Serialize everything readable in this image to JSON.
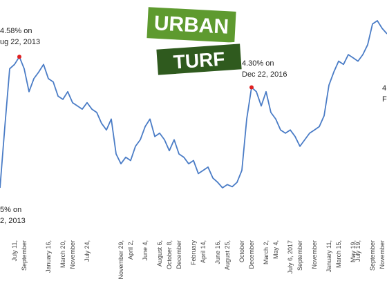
{
  "chart_data": {
    "type": "line",
    "categories": [
      null,
      null,
      null,
      "July 11,",
      null,
      "September",
      null,
      null,
      null,
      null,
      "January 16,",
      null,
      null,
      "March 20,",
      null,
      "November",
      null,
      null,
      "July 24,",
      null,
      null,
      null,
      null,
      null,
      null,
      "November 29,",
      null,
      "April 2,",
      null,
      null,
      "June 4,",
      null,
      null,
      "August 6,",
      null,
      "October 8,",
      null,
      "December",
      null,
      null,
      "February",
      null,
      "April 14,",
      null,
      null,
      "June 16,",
      null,
      "August 25,",
      null,
      null,
      "October",
      null,
      "December",
      null,
      null,
      "March 2,",
      null,
      "May 4,",
      null,
      null,
      "July 6, 2017",
      null,
      "September",
      null,
      null,
      "November",
      null,
      null,
      "January 11,",
      null,
      "March 15,",
      null,
      null,
      "May 19,",
      "July 19,",
      null,
      null,
      "September",
      null,
      "November",
      null
    ],
    "series": [
      {
        "color": "#4a7cc6",
        "values": [
          3.38,
          3.94,
          4.47,
          4.51,
          4.58,
          4.47,
          4.26,
          4.38,
          4.44,
          4.51,
          4.38,
          4.35,
          4.22,
          4.19,
          4.26,
          4.16,
          4.13,
          4.1,
          4.16,
          4.1,
          4.07,
          3.97,
          3.91,
          4.01,
          3.69,
          3.6,
          3.66,
          3.63,
          3.76,
          3.82,
          3.94,
          4.01,
          3.85,
          3.88,
          3.82,
          3.72,
          3.82,
          3.69,
          3.66,
          3.6,
          3.63,
          3.51,
          3.54,
          3.57,
          3.47,
          3.43,
          3.38,
          3.41,
          3.39,
          3.43,
          3.54,
          4.01,
          4.3,
          4.26,
          4.13,
          4.26,
          4.07,
          4.01,
          3.91,
          3.88,
          3.91,
          3.85,
          3.76,
          3.82,
          3.88,
          3.91,
          3.94,
          4.04,
          4.32,
          4.44,
          4.54,
          4.51,
          4.6,
          4.57,
          4.54,
          4.6,
          4.69,
          4.88,
          4.91,
          4.84,
          4.79
        ]
      }
    ],
    "ylim": [
      2.95,
      5.1
    ],
    "annotations": [
      {
        "lines": [
          "4.58% on",
          "ug 22, 2013"
        ]
      },
      {
        "lines": [
          "4.30% on",
          "Dec 22, 2016"
        ]
      },
      {
        "lines": [
          "5% on",
          "2, 2013"
        ]
      },
      {
        "lines": [
          "4.",
          "Fe"
        ]
      }
    ],
    "logo": {
      "top": "URBAN",
      "bottom": "TURF"
    }
  }
}
